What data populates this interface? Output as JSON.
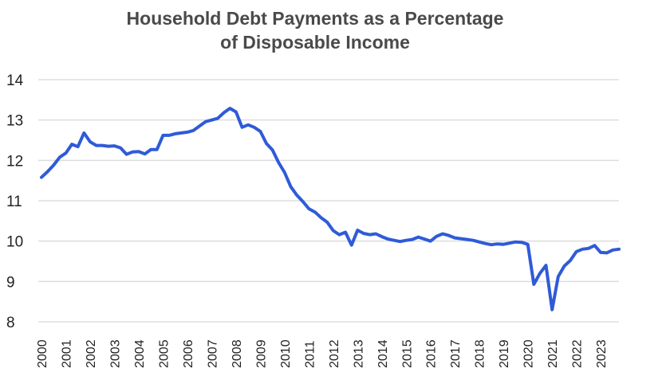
{
  "chart_data": {
    "type": "line",
    "title_line1": "Household Debt Payments as a Percentage",
    "title_line2": "of Disposable Income",
    "xlabel": "",
    "ylabel": "",
    "ylim": [
      8,
      14
    ],
    "xlim": [
      2000,
      2023.75
    ],
    "yticks": [
      "8",
      "9",
      "10",
      "11",
      "12",
      "13",
      "14"
    ],
    "xticks": [
      "2000",
      "2001",
      "2002",
      "2003",
      "2004",
      "2005",
      "2006",
      "2007",
      "2008",
      "2009",
      "2010",
      "2011",
      "2012",
      "2013",
      "2014",
      "2015",
      "2016",
      "2017",
      "2018",
      "2019",
      "2020",
      "2021",
      "2022",
      "2023"
    ],
    "grid": true,
    "line_color": "#2f5bd8",
    "x": [
      2000.0,
      2000.25,
      2000.5,
      2000.75,
      2001.0,
      2001.25,
      2001.5,
      2001.75,
      2002.0,
      2002.25,
      2002.5,
      2002.75,
      2003.0,
      2003.25,
      2003.5,
      2003.75,
      2004.0,
      2004.25,
      2004.5,
      2004.75,
      2005.0,
      2005.25,
      2005.5,
      2005.75,
      2006.0,
      2006.25,
      2006.5,
      2006.75,
      2007.0,
      2007.25,
      2007.5,
      2007.75,
      2008.0,
      2008.25,
      2008.5,
      2008.75,
      2009.0,
      2009.25,
      2009.5,
      2009.75,
      2010.0,
      2010.25,
      2010.5,
      2010.75,
      2011.0,
      2011.25,
      2011.5,
      2011.75,
      2012.0,
      2012.25,
      2012.5,
      2012.75,
      2013.0,
      2013.25,
      2013.5,
      2013.75,
      2014.0,
      2014.25,
      2014.5,
      2014.75,
      2015.0,
      2015.25,
      2015.5,
      2015.75,
      2016.0,
      2016.25,
      2016.5,
      2016.75,
      2017.0,
      2017.25,
      2017.5,
      2017.75,
      2018.0,
      2018.25,
      2018.5,
      2018.75,
      2019.0,
      2019.25,
      2019.5,
      2019.75,
      2020.0,
      2020.25,
      2020.5,
      2020.75,
      2021.0,
      2021.25,
      2021.5,
      2021.75,
      2022.0,
      2022.25,
      2022.5,
      2022.75,
      2023.0,
      2023.25,
      2023.5,
      2023.75
    ],
    "values": [
      11.58,
      11.72,
      11.88,
      12.08,
      12.18,
      12.4,
      12.34,
      12.68,
      12.46,
      12.37,
      12.37,
      12.35,
      12.36,
      12.31,
      12.15,
      12.21,
      12.22,
      12.16,
      12.27,
      12.27,
      12.62,
      12.62,
      12.66,
      12.68,
      12.7,
      12.74,
      12.85,
      12.96,
      13.0,
      13.04,
      13.18,
      13.29,
      13.2,
      12.82,
      12.88,
      12.82,
      12.72,
      12.42,
      12.26,
      11.95,
      11.7,
      11.35,
      11.14,
      10.98,
      10.8,
      10.72,
      10.58,
      10.47,
      10.26,
      10.16,
      10.22,
      9.9,
      10.27,
      10.19,
      10.16,
      10.18,
      10.11,
      10.05,
      10.02,
      9.99,
      10.02,
      10.04,
      10.1,
      10.05,
      10.0,
      10.12,
      10.18,
      10.14,
      10.08,
      10.06,
      10.04,
      10.02,
      9.98,
      9.94,
      9.91,
      9.93,
      9.92,
      9.95,
      9.98,
      9.97,
      9.92,
      8.93,
      9.2,
      9.4,
      8.3,
      9.12,
      9.38,
      9.52,
      9.74,
      9.8,
      9.82,
      9.89,
      9.72,
      9.71,
      9.78,
      9.8
    ]
  }
}
